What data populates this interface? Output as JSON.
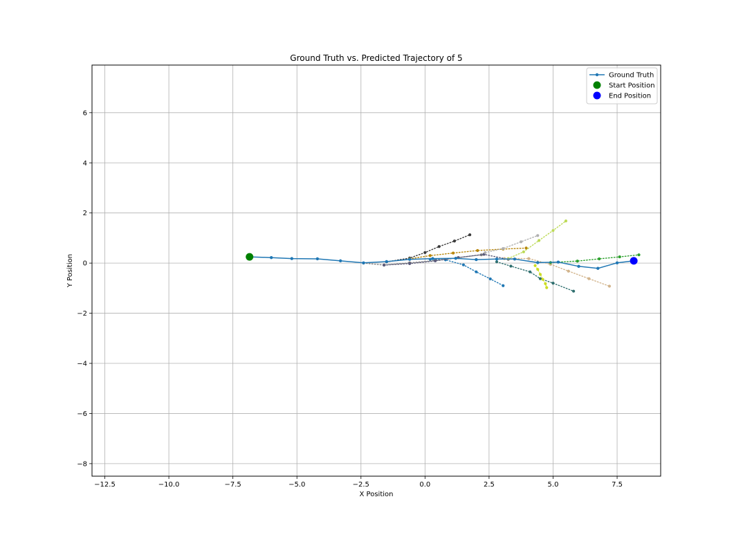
{
  "chart_data": {
    "type": "line",
    "title": "Ground Truth vs. Predicted Trajectory of 5",
    "xlabel": "X Position",
    "ylabel": "Y Position",
    "xlim": [
      -13.0,
      9.2
    ],
    "ylim": [
      -8.5,
      7.9
    ],
    "xticks": [
      -12.5,
      -10.0,
      -7.5,
      -5.0,
      -2.5,
      0.0,
      2.5,
      5.0,
      7.5
    ],
    "xtick_labels": [
      "−12.5",
      "−10.0",
      "−7.5",
      "−5.0",
      "−2.5",
      "0.0",
      "2.5",
      "5.0",
      "7.5"
    ],
    "yticks": [
      -8,
      -6,
      -4,
      -2,
      0,
      2,
      4,
      6
    ],
    "ytick_labels": [
      "−8",
      "−6",
      "−4",
      "−2",
      "0",
      "2",
      "4",
      "6"
    ],
    "grid": true,
    "legend_location": "upper right",
    "ground_truth": {
      "name": "Ground Truth",
      "color": "#1f77b4",
      "x": [
        -6.85,
        -6.0,
        -5.2,
        -4.2,
        -3.3,
        -2.4,
        -1.5,
        -0.6,
        0.3,
        1.2,
        2.0,
        2.8,
        3.5,
        4.4,
        5.2,
        6.0,
        6.75,
        7.5,
        8.15
      ],
      "y": [
        0.25,
        0.22,
        0.18,
        0.17,
        0.09,
        0.01,
        0.06,
        0.15,
        0.18,
        0.19,
        0.14,
        0.16,
        0.16,
        0.02,
        0.04,
        -0.13,
        -0.21,
        0.01,
        0.09
      ]
    },
    "start_position": {
      "name": "Start Position",
      "x": -6.85,
      "y": 0.25,
      "color": "#008000"
    },
    "end_position": {
      "name": "End Position",
      "x": 8.15,
      "y": 0.09,
      "color": "#0000ff"
    },
    "predictions": [
      {
        "color": "#1f77b4",
        "x": [
          0.2,
          0.8,
          1.5,
          2.0,
          2.55,
          3.05
        ],
        "y": [
          0.15,
          0.13,
          -0.07,
          -0.35,
          -0.63,
          -0.9
        ]
      },
      {
        "color": "#3a3a3a",
        "x": [
          -1.5,
          -0.6,
          0.0,
          0.55,
          1.15,
          1.75
        ],
        "y": [
          0.05,
          0.2,
          0.42,
          0.66,
          0.88,
          1.13
        ]
      },
      {
        "color": "#b8860b",
        "x": [
          -0.6,
          0.2,
          1.1,
          2.05,
          3.05,
          3.95
        ],
        "y": [
          0.17,
          0.3,
          0.4,
          0.5,
          0.56,
          0.6
        ]
      },
      {
        "color": "#808080",
        "x": [
          -2.4,
          -1.6,
          -0.6,
          0.4,
          1.3,
          2.2
        ],
        "y": [
          0.0,
          -0.08,
          0.01,
          0.1,
          0.22,
          0.33
        ]
      },
      {
        "color": "#5a5a7a",
        "x": [
          -1.6,
          -0.6,
          0.4,
          1.3,
          2.3,
          3.25
        ],
        "y": [
          -0.08,
          -0.02,
          0.09,
          0.22,
          0.35,
          0.15
        ]
      },
      {
        "color": "#b0b0b0",
        "x": [
          2.35,
          3.05,
          3.75,
          4.4
        ],
        "y": [
          0.42,
          0.58,
          0.85,
          1.1
        ]
      },
      {
        "color": "#bdda57",
        "x": [
          3.25,
          3.85,
          4.45,
          5.0,
          5.5
        ],
        "y": [
          0.18,
          0.45,
          0.9,
          1.3,
          1.68
        ]
      },
      {
        "color": "#2f6f6f",
        "x": [
          2.8,
          3.35,
          4.1,
          4.5,
          5.0,
          5.8
        ],
        "y": [
          0.05,
          -0.12,
          -0.35,
          -0.62,
          -0.8,
          -1.12
        ]
      },
      {
        "color": "#d2b48c",
        "x": [
          3.1,
          4.05,
          4.9,
          5.6,
          6.4,
          7.2
        ],
        "y": [
          0.18,
          0.18,
          -0.05,
          -0.32,
          -0.62,
          -0.92
        ]
      },
      {
        "color": "#ccdd22",
        "x": [
          4.3,
          4.4,
          4.5,
          4.6,
          4.7,
          4.75
        ],
        "y": [
          -0.1,
          -0.25,
          -0.45,
          -0.65,
          -0.82,
          -0.98
        ]
      },
      {
        "color": "#2ca02c",
        "x": [
          4.9,
          5.95,
          6.8,
          7.6,
          8.35
        ],
        "y": [
          0.02,
          0.08,
          0.17,
          0.25,
          0.33
        ]
      }
    ],
    "legend": [
      {
        "label": "Ground Truth",
        "kind": "line-marker",
        "color": "#1f77b4"
      },
      {
        "label": "Start Position",
        "kind": "dot",
        "color": "#008000"
      },
      {
        "label": "End Position",
        "kind": "dot",
        "color": "#0000ff"
      }
    ]
  }
}
